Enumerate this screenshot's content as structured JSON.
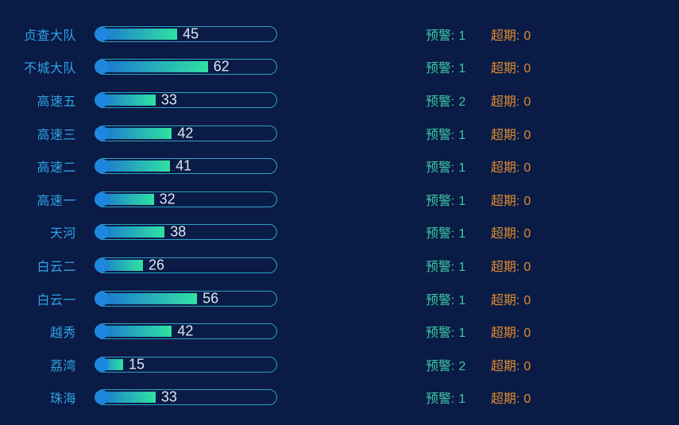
{
  "page": {
    "background": "#0a1b45"
  },
  "colors": {
    "label": "#2fa3e6",
    "bar_value_text": "#dee3f2",
    "bar_border": "#2ba4c4",
    "bar_fill_start": "#1a6fd4",
    "bar_fill_end": "#30e2a2",
    "bar_dot": "#1d87e0",
    "warning": "#3cc8a4",
    "overdue": "#dd8c30"
  },
  "stats": {
    "warning_label": "预警:",
    "overdue_label": "超期:"
  },
  "chart_data": {
    "type": "bar",
    "orientation": "horizontal",
    "value_axis_max": 100,
    "grid": false,
    "legend_position": "none",
    "categories": [
      "贞查大队",
      "不城大队",
      "高速五",
      "高速三",
      "高速二",
      "高速一",
      "天河",
      "白云二",
      "白云一",
      "越秀",
      "荔湾",
      "珠海"
    ],
    "series": [
      {
        "name": "value",
        "values": [
          45,
          62,
          33,
          42,
          41,
          32,
          38,
          26,
          56,
          42,
          15,
          33
        ]
      },
      {
        "name": "预警",
        "values": [
          1,
          1,
          2,
          1,
          1,
          1,
          1,
          1,
          1,
          1,
          2,
          1
        ]
      },
      {
        "name": "超期",
        "values": [
          0,
          0,
          0,
          0,
          0,
          0,
          0,
          0,
          0,
          0,
          0,
          0
        ]
      }
    ]
  }
}
